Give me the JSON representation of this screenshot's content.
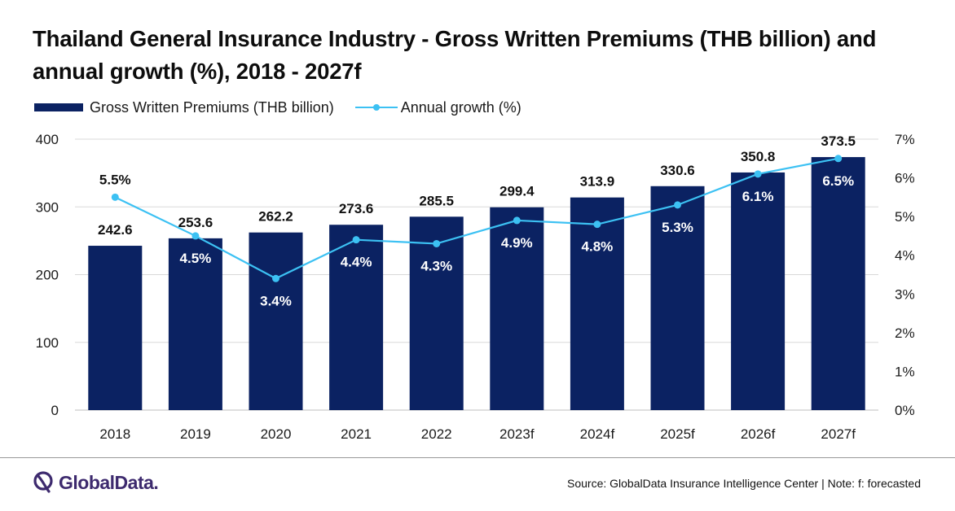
{
  "title": "Thailand General Insurance Industry - Gross Written Premiums (THB billion) and annual growth (%), 2018 - 2027f",
  "legend": {
    "bar_label": "Gross Written Premiums (THB billion)",
    "line_label": "Annual growth (%)"
  },
  "chart_data": {
    "type": "bar",
    "categories": [
      "2018",
      "2019",
      "2020",
      "2021",
      "2022",
      "2023f",
      "2024f",
      "2025f",
      "2026f",
      "2027f"
    ],
    "series": [
      {
        "name": "Gross Written Premiums (THB billion)",
        "type": "bar",
        "axis": "left",
        "values": [
          242.6,
          253.6,
          262.2,
          273.6,
          285.5,
          299.4,
          313.9,
          330.6,
          350.8,
          373.5
        ],
        "labels": [
          "242.6",
          "253.6",
          "262.2",
          "273.6",
          "285.5",
          "299.4",
          "313.9",
          "330.6",
          "350.8",
          "373.5"
        ]
      },
      {
        "name": "Annual growth (%)",
        "type": "line",
        "axis": "right",
        "values": [
          5.5,
          4.5,
          3.4,
          4.4,
          4.3,
          4.9,
          4.8,
          5.3,
          6.1,
          6.5
        ],
        "labels": [
          "5.5%",
          "4.5%",
          "3.4%",
          "4.4%",
          "4.3%",
          "4.9%",
          "4.8%",
          "5.3%",
          "6.1%",
          "6.5%"
        ]
      }
    ],
    "y_left": {
      "min": 0,
      "max": 400,
      "ticks": [
        "0",
        "100",
        "200",
        "300",
        "400"
      ]
    },
    "y_right": {
      "min": 0,
      "max": 7,
      "ticks": [
        "0%",
        "1%",
        "2%",
        "3%",
        "4%",
        "5%",
        "6%",
        "7%"
      ]
    },
    "grid": true,
    "legend_position": "top-left",
    "colors": {
      "bar": "#0b2262",
      "line": "#3cc1f3",
      "grid": "#d9d9d9"
    }
  },
  "footer": {
    "logo_text": "GlobalData.",
    "source": "Source: GlobalData Insurance Intelligence Center | Note: f: forecasted"
  }
}
